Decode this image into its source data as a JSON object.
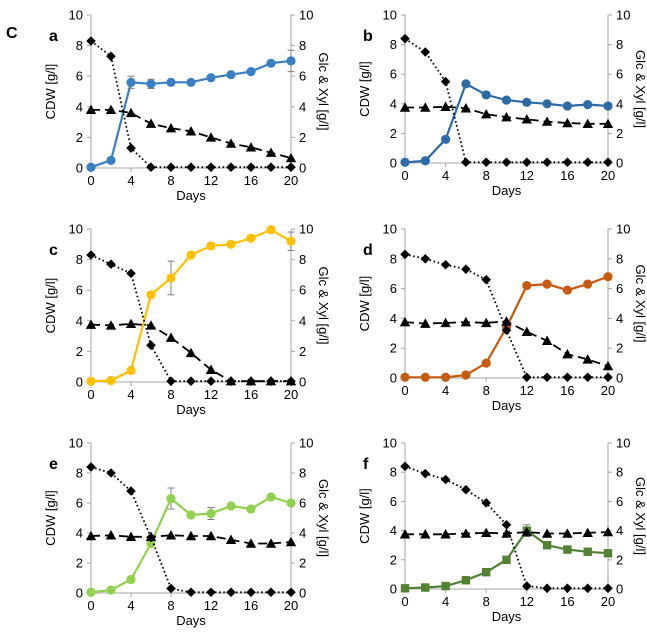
{
  "figure_label": "C",
  "colors": {
    "axis": "#a6a6a6",
    "glc": "#000000",
    "xyl": "#000000",
    "err": "#7f7f7f"
  },
  "chart_data": [
    {
      "panel": "a",
      "type": "line",
      "xlabel": "Days",
      "ylabel": "CDW [g/l]",
      "y2label": "Glc & Xyl [g/l]",
      "xlim": [
        0,
        20
      ],
      "ylim": [
        0,
        10
      ],
      "y2lim": [
        0,
        10
      ],
      "xticks": [
        "0",
        "4",
        "8",
        "12",
        "16",
        "20"
      ],
      "yticks": [
        "0",
        "2",
        "4",
        "6",
        "8",
        "10"
      ],
      "color": "#3a7fc3",
      "series": [
        {
          "role": "cdw",
          "marker": "circle",
          "line": "solid",
          "x": [
            0,
            2,
            4,
            6,
            8,
            10,
            12,
            14,
            16,
            18,
            20
          ],
          "y": [
            0.05,
            0.5,
            5.6,
            5.5,
            5.6,
            5.6,
            5.9,
            6.1,
            6.3,
            6.85,
            7.0
          ],
          "err": [
            0,
            0,
            0.4,
            0.3,
            0,
            0,
            0,
            0,
            0,
            0,
            0.7
          ]
        },
        {
          "role": "glc",
          "marker": "diamond",
          "line": "dotted",
          "x": [
            0,
            2,
            4,
            6,
            8,
            10,
            12,
            14,
            16,
            18,
            20
          ],
          "y": [
            8.3,
            7.3,
            1.3,
            0.05,
            0.05,
            0.05,
            0.05,
            0.05,
            0.05,
            0.05,
            0.05
          ]
        },
        {
          "role": "xyl",
          "marker": "triangle",
          "line": "dashed",
          "x": [
            0,
            2,
            4,
            6,
            8,
            10,
            12,
            14,
            16,
            18,
            20
          ],
          "y": [
            3.8,
            3.8,
            3.6,
            2.9,
            2.6,
            2.4,
            2.0,
            1.6,
            1.35,
            1.0,
            0.65
          ]
        }
      ]
    },
    {
      "panel": "b",
      "type": "line",
      "xlabel": "Days",
      "ylabel": "CDW [g/l]",
      "y2label": "Glc & Xyl [g/l]",
      "xlim": [
        0,
        20
      ],
      "ylim": [
        0,
        10
      ],
      "y2lim": [
        0,
        10
      ],
      "xticks": [
        "0",
        "4",
        "8",
        "12",
        "16",
        "20"
      ],
      "yticks": [
        "0",
        "2",
        "4",
        "6",
        "8",
        "10"
      ],
      "color": "#2e6aa6",
      "series": [
        {
          "role": "cdw",
          "marker": "circle",
          "line": "solid",
          "x": [
            0,
            2,
            4,
            6,
            8,
            10,
            12,
            14,
            16,
            18,
            20
          ],
          "y": [
            0.05,
            0.15,
            1.6,
            5.35,
            4.6,
            4.25,
            4.1,
            4.0,
            3.85,
            3.95,
            3.85
          ],
          "err": [
            0,
            0,
            0,
            0,
            0,
            0,
            0,
            0,
            0,
            0,
            0
          ]
        },
        {
          "role": "glc",
          "marker": "diamond",
          "line": "dotted",
          "x": [
            0,
            2,
            4,
            6,
            8,
            10,
            12,
            14,
            16,
            18,
            20
          ],
          "y": [
            8.4,
            7.5,
            5.5,
            0.05,
            0.05,
            0.05,
            0.05,
            0.05,
            0.05,
            0.05,
            0.05
          ]
        },
        {
          "role": "xyl",
          "marker": "triangle",
          "line": "dashed",
          "x": [
            0,
            2,
            4,
            6,
            8,
            10,
            12,
            14,
            16,
            18,
            20
          ],
          "y": [
            3.75,
            3.75,
            3.8,
            3.7,
            3.3,
            3.1,
            2.95,
            2.8,
            2.7,
            2.65,
            2.65
          ]
        }
      ]
    },
    {
      "panel": "c",
      "type": "line",
      "xlabel": "Days",
      "ylabel": "CDW [g/l]",
      "y2label": "Glc & Xyl [g/l]",
      "xlim": [
        0,
        20
      ],
      "ylim": [
        0,
        10
      ],
      "y2lim": [
        0,
        10
      ],
      "xticks": [
        "0",
        "4",
        "8",
        "12",
        "16",
        "20"
      ],
      "yticks": [
        "0",
        "2",
        "4",
        "6",
        "8",
        "10"
      ],
      "color": "#ffc000",
      "series": [
        {
          "role": "cdw",
          "marker": "circle",
          "line": "solid",
          "x": [
            0,
            2,
            4,
            6,
            8,
            10,
            12,
            14,
            16,
            18,
            20
          ],
          "y": [
            0.05,
            0.1,
            0.75,
            5.7,
            6.8,
            8.3,
            8.9,
            9.0,
            9.4,
            9.95,
            9.2
          ],
          "err": [
            0,
            0,
            0,
            0,
            1.1,
            0,
            0,
            0,
            0,
            0,
            0.6
          ]
        },
        {
          "role": "glc",
          "marker": "diamond",
          "line": "dotted",
          "x": [
            0,
            2,
            4,
            6,
            8,
            10,
            12,
            14,
            16,
            18,
            20
          ],
          "y": [
            8.3,
            7.7,
            7.1,
            2.4,
            0.05,
            0.05,
            0.05,
            0.05,
            0.05,
            0.05,
            0.05
          ]
        },
        {
          "role": "xyl",
          "marker": "triangle",
          "line": "dashed",
          "x": [
            0,
            2,
            4,
            6,
            8,
            10,
            12,
            14,
            16,
            18,
            20
          ],
          "y": [
            3.75,
            3.7,
            3.8,
            3.7,
            2.9,
            1.9,
            0.8,
            0.05,
            0.05,
            0.05,
            0.05
          ]
        }
      ]
    },
    {
      "panel": "d",
      "type": "line",
      "xlabel": "Days",
      "ylabel": "CDW [g/l]",
      "y2label": "Glc & Xyl [g/l]",
      "xlim": [
        0,
        20
      ],
      "ylim": [
        0,
        10
      ],
      "y2lim": [
        0,
        10
      ],
      "xticks": [
        "0",
        "4",
        "8",
        "12",
        "16",
        "20"
      ],
      "yticks": [
        "0",
        "2",
        "4",
        "6",
        "8",
        "10"
      ],
      "color": "#c55a11",
      "series": [
        {
          "role": "cdw",
          "marker": "circle",
          "line": "solid",
          "x": [
            0,
            2,
            4,
            6,
            8,
            10,
            12,
            14,
            16,
            18,
            20
          ],
          "y": [
            0.05,
            0.05,
            0.05,
            0.2,
            1.0,
            3.4,
            6.2,
            6.3,
            5.9,
            6.3,
            6.8
          ],
          "err": [
            0,
            0,
            0,
            0,
            0,
            0,
            0,
            0,
            0,
            0,
            0
          ]
        },
        {
          "role": "glc",
          "marker": "diamond",
          "line": "dotted",
          "x": [
            0,
            2,
            4,
            6,
            8,
            10,
            12,
            14,
            16,
            18,
            20
          ],
          "y": [
            8.3,
            8.0,
            7.6,
            7.3,
            6.6,
            3.2,
            0.05,
            0.05,
            0.05,
            0.05,
            0.05
          ]
        },
        {
          "role": "xyl",
          "marker": "triangle",
          "line": "dashed",
          "x": [
            0,
            2,
            4,
            6,
            8,
            10,
            12,
            14,
            16,
            18,
            20
          ],
          "y": [
            3.75,
            3.65,
            3.7,
            3.75,
            3.7,
            3.8,
            3.1,
            2.5,
            1.6,
            1.25,
            0.8
          ]
        }
      ]
    },
    {
      "panel": "e",
      "type": "line",
      "xlabel": "Days",
      "ylabel": "CDW [g/l]",
      "y2label": "Glc & Xyl [g/l]",
      "xlim": [
        0,
        20
      ],
      "ylim": [
        0,
        10
      ],
      "y2lim": [
        0,
        10
      ],
      "xticks": [
        "0",
        "4",
        "8",
        "12",
        "16",
        "20"
      ],
      "yticks": [
        "0",
        "2",
        "4",
        "6",
        "8",
        "10"
      ],
      "color": "#92d050",
      "series": [
        {
          "role": "cdw",
          "marker": "circle",
          "line": "solid",
          "x": [
            0,
            2,
            4,
            6,
            8,
            10,
            12,
            14,
            16,
            18,
            20
          ],
          "y": [
            0.05,
            0.2,
            0.9,
            3.3,
            6.3,
            5.2,
            5.3,
            5.8,
            5.6,
            6.4,
            6.0
          ],
          "err": [
            0,
            0,
            0,
            0,
            0.7,
            0,
            0.4,
            0,
            0,
            0,
            0
          ]
        },
        {
          "role": "glc",
          "marker": "diamond",
          "line": "dotted",
          "x": [
            0,
            2,
            4,
            6,
            8,
            10,
            12,
            14,
            16,
            18,
            20
          ],
          "y": [
            8.4,
            8.0,
            6.8,
            3.7,
            0.3,
            0.05,
            0.05,
            0.05,
            0.05,
            0.05,
            0.05
          ]
        },
        {
          "role": "xyl",
          "marker": "triangle",
          "line": "dashed",
          "x": [
            0,
            2,
            4,
            6,
            8,
            10,
            12,
            14,
            16,
            18,
            20
          ],
          "y": [
            3.8,
            3.85,
            3.75,
            3.75,
            3.85,
            3.8,
            3.8,
            3.55,
            3.3,
            3.3,
            3.4
          ]
        }
      ]
    },
    {
      "panel": "f",
      "type": "line",
      "xlabel": "Days",
      "ylabel": "CDW [g/l]",
      "y2label": "Glc & Xyl [g/l]",
      "xlim": [
        0,
        20
      ],
      "ylim": [
        0,
        10
      ],
      "y2lim": [
        0,
        10
      ],
      "xticks": [
        "0",
        "4",
        "8",
        "12",
        "16",
        "20"
      ],
      "yticks": [
        "0",
        "2",
        "4",
        "6",
        "8",
        "10"
      ],
      "color": "#548235",
      "series": [
        {
          "role": "cdw",
          "marker": "square",
          "line": "solid",
          "x": [
            0,
            2,
            4,
            6,
            8,
            10,
            12,
            14,
            16,
            18,
            20
          ],
          "y": [
            0.05,
            0.1,
            0.2,
            0.6,
            1.15,
            2.0,
            4.0,
            3.0,
            2.7,
            2.55,
            2.45
          ],
          "err": [
            0,
            0,
            0,
            0,
            0,
            0,
            0.4,
            0,
            0,
            0,
            0
          ]
        },
        {
          "role": "glc",
          "marker": "diamond",
          "line": "dotted",
          "x": [
            0,
            2,
            4,
            6,
            8,
            10,
            12,
            14,
            16,
            18,
            20
          ],
          "y": [
            8.4,
            7.9,
            7.5,
            6.8,
            5.9,
            4.4,
            0.2,
            0.05,
            0.05,
            0.05,
            0.05
          ]
        },
        {
          "role": "xyl",
          "marker": "triangle",
          "line": "dashed",
          "x": [
            0,
            2,
            4,
            6,
            8,
            10,
            12,
            14,
            16,
            18,
            20
          ],
          "y": [
            3.75,
            3.75,
            3.75,
            3.8,
            3.85,
            3.8,
            3.9,
            3.8,
            3.8,
            3.85,
            3.9
          ]
        }
      ]
    }
  ]
}
